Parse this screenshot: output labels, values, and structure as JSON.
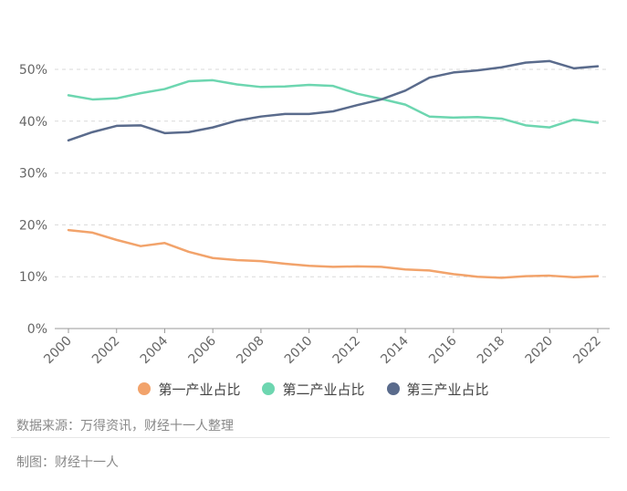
{
  "chart_data": {
    "type": "line",
    "title": "",
    "xlabel": "",
    "ylabel": "",
    "x": [
      2000,
      2001,
      2002,
      2003,
      2004,
      2005,
      2006,
      2007,
      2008,
      2009,
      2010,
      2011,
      2012,
      2013,
      2014,
      2015,
      2016,
      2017,
      2018,
      2019,
      2020,
      2021,
      2022
    ],
    "xticks": [
      "2000",
      "2002",
      "2004",
      "2006",
      "2008",
      "2010",
      "2012",
      "2014",
      "2016",
      "2018",
      "2020",
      "2022"
    ],
    "ylim": [
      0,
      50
    ],
    "yticks": [
      "0%",
      "10%",
      "20%",
      "30%",
      "40%",
      "50%"
    ],
    "grid": true,
    "legend_position": "bottom",
    "series": [
      {
        "name": "第一产业占比",
        "color": "#f2a36b",
        "values": [
          19.0,
          18.5,
          17.1,
          15.9,
          16.5,
          14.8,
          13.6,
          13.2,
          13.0,
          12.5,
          12.1,
          11.9,
          12.0,
          11.9,
          11.4,
          11.2,
          10.5,
          10.0,
          9.8,
          10.1,
          10.2,
          9.9,
          10.1
        ]
      },
      {
        "name": "第二产业占比",
        "color": "#6dd6b0",
        "values": [
          45.0,
          44.2,
          44.4,
          45.4,
          46.2,
          47.7,
          47.9,
          47.1,
          46.6,
          46.7,
          47.0,
          46.8,
          45.3,
          44.3,
          43.2,
          40.9,
          40.7,
          40.8,
          40.5,
          39.2,
          38.8,
          40.3,
          39.7
        ]
      },
      {
        "name": "第三产业占比",
        "color": "#5a6b8c",
        "values": [
          36.3,
          37.9,
          39.1,
          39.2,
          37.7,
          37.9,
          38.8,
          40.1,
          40.9,
          41.4,
          41.4,
          41.9,
          43.1,
          44.2,
          45.9,
          48.4,
          49.4,
          49.8,
          50.4,
          51.3,
          51.6,
          50.2,
          50.6
        ]
      }
    ]
  },
  "legend": {
    "items": [
      "第一产业占比",
      "第二产业占比",
      "第三产业占比"
    ]
  },
  "footer": {
    "source": "数据来源：万得资讯，财经十一人整理",
    "credit": "制图：财经十一人"
  }
}
